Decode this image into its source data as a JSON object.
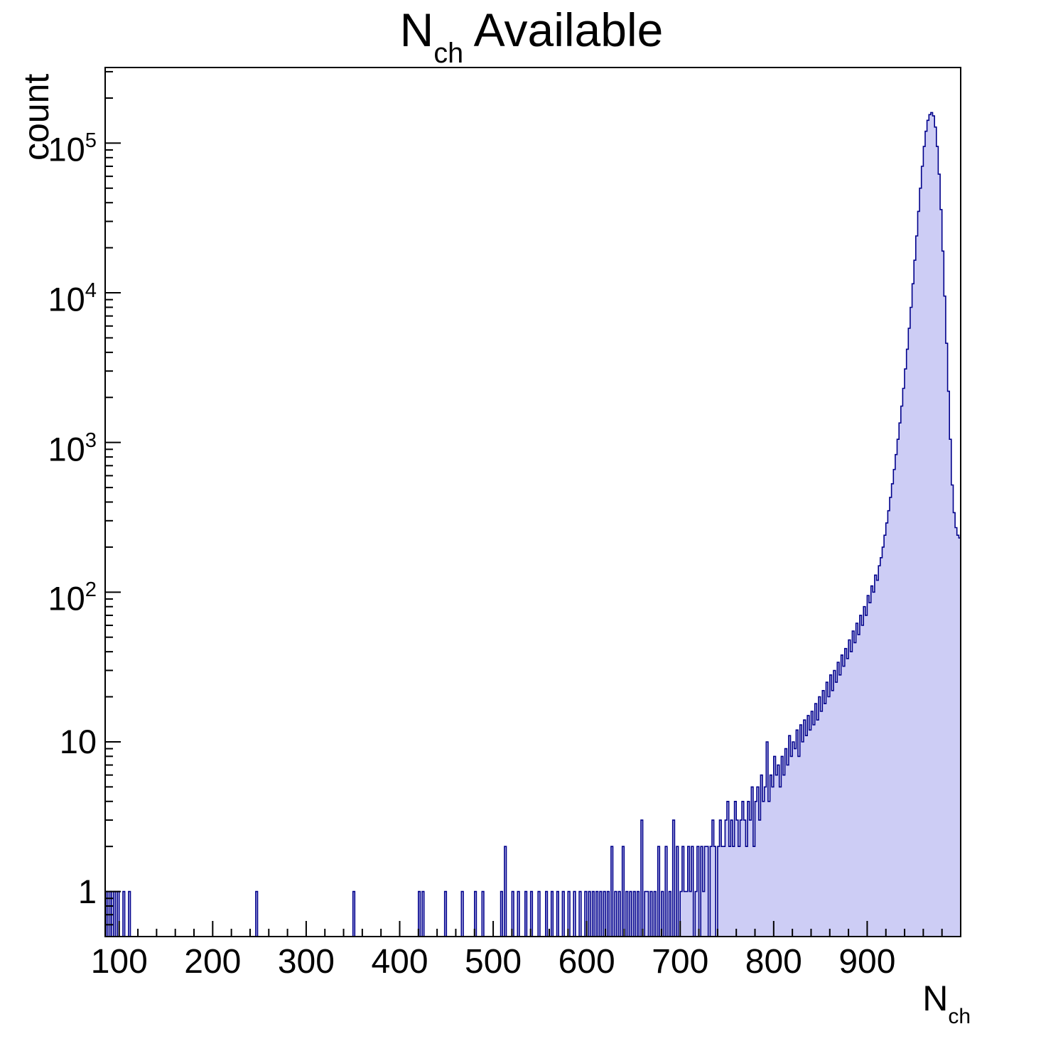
{
  "title": {
    "prefix": "N",
    "sub": "ch",
    "suffix": "Available"
  },
  "x_title": {
    "prefix": "N",
    "sub": "ch"
  },
  "style": {
    "fill_color": "#cdcdf5",
    "line_color": "#00008b",
    "frame_color": "#000000",
    "background": "#ffffff"
  },
  "chart_data": {
    "type": "bar",
    "title": "N_ch Available",
    "xlabel": "N_ch",
    "ylabel": "count",
    "xlim": [
      85,
      1000
    ],
    "ylim": [
      0.5,
      320000
    ],
    "yscale": "log",
    "grid": false,
    "legend": false,
    "bin_width": 2,
    "x_major_ticks": [
      100,
      200,
      300,
      400,
      500,
      600,
      700,
      800,
      900
    ],
    "x_tick_labels": [
      "100",
      "200",
      "300",
      "400",
      "500",
      "600",
      "700",
      "800",
      "900"
    ],
    "x_minor_step": 20,
    "y_ticks": [
      {
        "v": 1,
        "b": "1",
        "e": ""
      },
      {
        "v": 10,
        "b": "10",
        "e": ""
      },
      {
        "v": 100,
        "b": "10",
        "e": "2"
      },
      {
        "v": 1000,
        "b": "10",
        "e": "3"
      },
      {
        "v": 10000,
        "b": "10",
        "e": "4"
      },
      {
        "v": 100000,
        "b": "10",
        "e": "5"
      }
    ],
    "bins": [
      [
        86,
        1
      ],
      [
        90,
        1
      ],
      [
        94,
        1
      ],
      [
        98,
        1
      ],
      [
        104,
        1
      ],
      [
        110,
        1
      ],
      [
        246,
        1
      ],
      [
        350,
        1
      ],
      [
        420,
        1
      ],
      [
        424,
        1
      ],
      [
        448,
        1
      ],
      [
        466,
        1
      ],
      [
        480,
        1
      ],
      [
        488,
        1
      ],
      [
        508,
        1
      ],
      [
        512,
        2
      ],
      [
        520,
        1
      ],
      [
        526,
        1
      ],
      [
        534,
        1
      ],
      [
        540,
        1
      ],
      [
        548,
        1
      ],
      [
        556,
        1
      ],
      [
        562,
        1
      ],
      [
        568,
        1
      ],
      [
        574,
        1
      ],
      [
        580,
        1
      ],
      [
        586,
        1
      ],
      [
        592,
        1
      ],
      [
        598,
        1
      ],
      [
        602,
        1
      ],
      [
        606,
        1
      ],
      [
        610,
        1
      ],
      [
        614,
        1
      ],
      [
        618,
        1
      ],
      [
        622,
        1
      ],
      [
        626,
        2
      ],
      [
        630,
        1
      ],
      [
        634,
        1
      ],
      [
        638,
        2
      ],
      [
        642,
        1
      ],
      [
        646,
        1
      ],
      [
        650,
        1
      ],
      [
        654,
        1
      ],
      [
        658,
        3
      ],
      [
        662,
        1
      ],
      [
        664,
        1
      ],
      [
        668,
        1
      ],
      [
        672,
        1
      ],
      [
        676,
        2
      ],
      [
        680,
        1
      ],
      [
        684,
        2
      ],
      [
        688,
        1
      ],
      [
        692,
        3
      ],
      [
        696,
        2
      ],
      [
        700,
        1
      ],
      [
        702,
        2
      ],
      [
        704,
        1
      ],
      [
        706,
        1
      ],
      [
        708,
        2
      ],
      [
        710,
        1
      ],
      [
        712,
        2
      ],
      [
        716,
        1
      ],
      [
        718,
        2
      ],
      [
        722,
        2
      ],
      [
        724,
        1
      ],
      [
        726,
        2
      ],
      [
        728,
        2
      ],
      [
        732,
        2
      ],
      [
        734,
        3
      ],
      [
        736,
        2
      ],
      [
        740,
        2
      ],
      [
        742,
        3
      ],
      [
        744,
        2
      ],
      [
        746,
        2
      ],
      [
        748,
        3
      ],
      [
        750,
        4
      ],
      [
        752,
        2
      ],
      [
        754,
        3
      ],
      [
        756,
        2
      ],
      [
        758,
        4
      ],
      [
        760,
        3
      ],
      [
        762,
        2
      ],
      [
        764,
        3
      ],
      [
        766,
        4
      ],
      [
        768,
        3
      ],
      [
        770,
        2
      ],
      [
        772,
        4
      ],
      [
        774,
        3
      ],
      [
        776,
        5
      ],
      [
        778,
        2
      ],
      [
        780,
        4
      ],
      [
        782,
        5
      ],
      [
        784,
        3
      ],
      [
        786,
        6
      ],
      [
        788,
        4
      ],
      [
        790,
        5
      ],
      [
        792,
        10
      ],
      [
        794,
        4
      ],
      [
        796,
        6
      ],
      [
        798,
        5
      ],
      [
        800,
        8
      ],
      [
        802,
        6
      ],
      [
        804,
        7
      ],
      [
        806,
        5
      ],
      [
        808,
        8
      ],
      [
        810,
        6
      ],
      [
        812,
        9
      ],
      [
        814,
        7
      ],
      [
        816,
        11
      ],
      [
        818,
        8
      ],
      [
        820,
        10
      ],
      [
        822,
        9
      ],
      [
        824,
        12
      ],
      [
        826,
        8
      ],
      [
        828,
        13
      ],
      [
        830,
        10
      ],
      [
        832,
        14
      ],
      [
        834,
        11
      ],
      [
        836,
        15
      ],
      [
        838,
        12
      ],
      [
        840,
        16
      ],
      [
        842,
        13
      ],
      [
        844,
        18
      ],
      [
        846,
        14
      ],
      [
        848,
        20
      ],
      [
        850,
        16
      ],
      [
        852,
        22
      ],
      [
        854,
        18
      ],
      [
        856,
        25
      ],
      [
        858,
        20
      ],
      [
        860,
        28
      ],
      [
        862,
        22
      ],
      [
        864,
        30
      ],
      [
        866,
        25
      ],
      [
        868,
        34
      ],
      [
        870,
        28
      ],
      [
        872,
        38
      ],
      [
        874,
        32
      ],
      [
        876,
        42
      ],
      [
        878,
        36
      ],
      [
        880,
        48
      ],
      [
        882,
        40
      ],
      [
        884,
        55
      ],
      [
        886,
        46
      ],
      [
        888,
        62
      ],
      [
        890,
        52
      ],
      [
        892,
        70
      ],
      [
        894,
        60
      ],
      [
        896,
        80
      ],
      [
        898,
        70
      ],
      [
        900,
        95
      ],
      [
        902,
        85
      ],
      [
        904,
        110
      ],
      [
        906,
        100
      ],
      [
        908,
        130
      ],
      [
        910,
        120
      ],
      [
        912,
        150
      ],
      [
        914,
        170
      ],
      [
        916,
        200
      ],
      [
        918,
        240
      ],
      [
        920,
        290
      ],
      [
        922,
        350
      ],
      [
        924,
        430
      ],
      [
        926,
        530
      ],
      [
        928,
        660
      ],
      [
        930,
        830
      ],
      [
        932,
        1050
      ],
      [
        934,
        1350
      ],
      [
        936,
        1750
      ],
      [
        938,
        2300
      ],
      [
        940,
        3100
      ],
      [
        942,
        4200
      ],
      [
        944,
        5800
      ],
      [
        946,
        8000
      ],
      [
        948,
        11500
      ],
      [
        950,
        16500
      ],
      [
        952,
        24000
      ],
      [
        954,
        35000
      ],
      [
        956,
        50000
      ],
      [
        958,
        70000
      ],
      [
        960,
        95000
      ],
      [
        962,
        120000
      ],
      [
        964,
        142000
      ],
      [
        966,
        155000
      ],
      [
        968,
        160000
      ],
      [
        970,
        152000
      ],
      [
        972,
        128000
      ],
      [
        974,
        95000
      ],
      [
        976,
        62000
      ],
      [
        978,
        36000
      ],
      [
        980,
        19000
      ],
      [
        982,
        9500
      ],
      [
        984,
        4600
      ],
      [
        986,
        2200
      ],
      [
        988,
        1050
      ],
      [
        990,
        520
      ],
      [
        992,
        340
      ],
      [
        994,
        270
      ],
      [
        996,
        240
      ],
      [
        998,
        230
      ]
    ]
  }
}
